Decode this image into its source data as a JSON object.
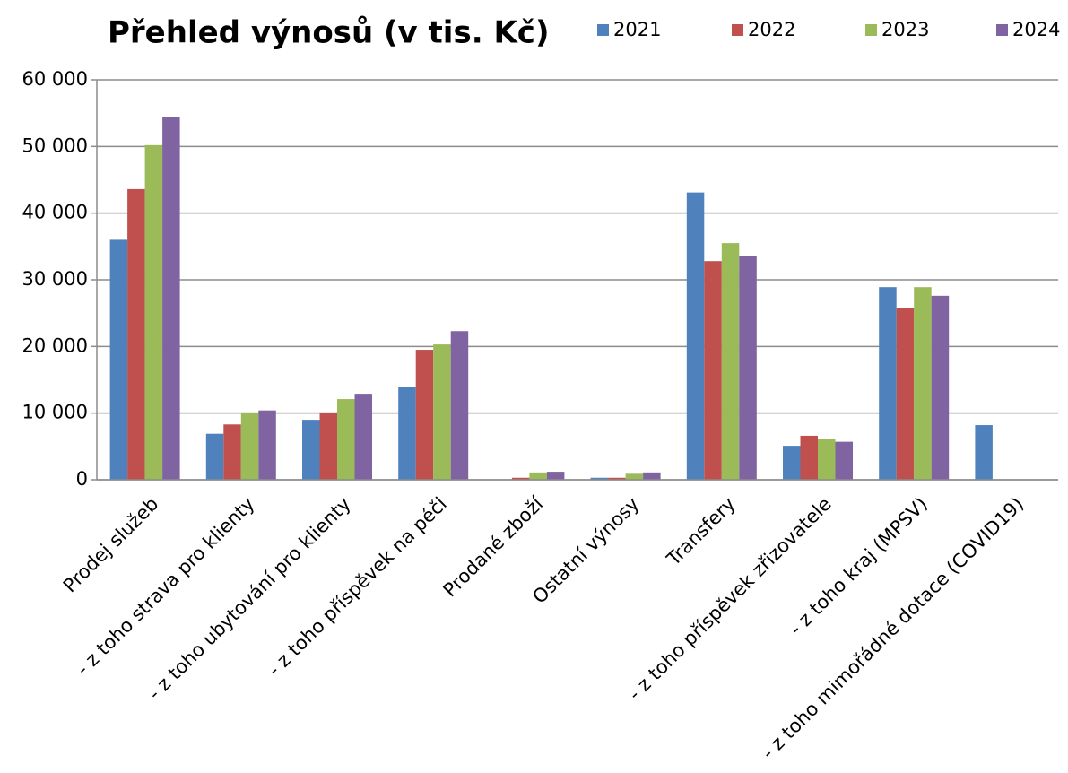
{
  "chart_data": {
    "type": "bar",
    "title": "Přehled výnosů (v tis. Kč)",
    "categories": [
      "Prodej služeb",
      "- z toho strava pro klienty",
      "- z toho ubytování pro klienty",
      "- z toho příspěvek na péči",
      "Prodané zboží",
      "Ostatní výnosy",
      "Transfery",
      "- z toho příspěvek zřizovatele",
      "- z toho kraj (MPSV)",
      "- z toho mimořádné dotace (COVID19)"
    ],
    "series": [
      {
        "name": "2021",
        "color": "#4f81bd",
        "values": [
          36000,
          6900,
          9000,
          13900,
          0,
          300,
          43100,
          5100,
          28900,
          8200
        ]
      },
      {
        "name": "2022",
        "color": "#c0504d",
        "values": [
          43600,
          8300,
          10100,
          19500,
          300,
          300,
          32800,
          6600,
          25800,
          0
        ]
      },
      {
        "name": "2023",
        "color": "#9bbb59",
        "values": [
          50200,
          10100,
          12100,
          20300,
          1100,
          900,
          35500,
          6100,
          28900,
          0
        ]
      },
      {
        "name": "2024",
        "color": "#8064a2",
        "values": [
          54400,
          10400,
          12900,
          22300,
          1200,
          1100,
          33600,
          5700,
          27600,
          0
        ]
      }
    ],
    "ylim": [
      0,
      60000
    ],
    "yticks": [
      {
        "value": 0,
        "label": "0"
      },
      {
        "value": 10000,
        "label": "10 000"
      },
      {
        "value": 20000,
        "label": "20 000"
      },
      {
        "value": 30000,
        "label": "30 000"
      },
      {
        "value": 40000,
        "label": "40 000"
      },
      {
        "value": 50000,
        "label": "50 000"
      },
      {
        "value": 60000,
        "label": "60 000"
      }
    ],
    "grid": true,
    "legend": "top-right"
  }
}
